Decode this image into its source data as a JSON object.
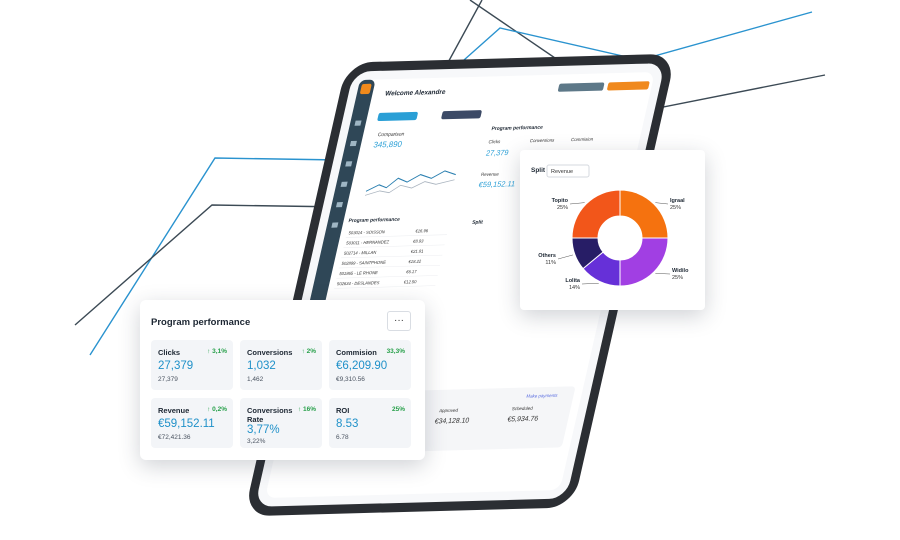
{
  "tablet": {
    "welcome": "Welcome Alexandre",
    "comparison": "Comparison",
    "comparison_value": "345,890",
    "program_performance": "Program performance",
    "clicks": "Clicks",
    "clicks_value": "27,379",
    "conversions": "Conversions",
    "commision": "Commision",
    "revenue": "Revenue",
    "revenue_value": "€59,152.11",
    "table_title": "Program performance",
    "table_rows": [
      [
        "503014 - SOISSON",
        "€16.96"
      ],
      [
        "503011 - HERNANDEZ",
        "€8.93"
      ],
      [
        "502714 - MILLAN",
        "€21.81"
      ],
      [
        "502899 - SAINTPHONE",
        "€18.22"
      ],
      [
        "501865 - LE RHONE",
        "€6.17"
      ],
      [
        "502634 - DESLANDES",
        "€12.50"
      ]
    ],
    "split": "Split",
    "make_payments": "Make payments",
    "approved": "Approved",
    "approved_value": "€34,128.10",
    "scheduled": "Scheduled",
    "scheduled_value": "€5,934.76"
  },
  "card": {
    "title": "Program performance",
    "more": "···",
    "metrics": [
      {
        "label": "Clicks",
        "change": "↑ 3,1%",
        "value": "27,379",
        "previous": "27,379"
      },
      {
        "label": "Conversions",
        "change": "↑ 2%",
        "value": "1,032",
        "previous": "1,462"
      },
      {
        "label": "Commision",
        "change": "33,3%",
        "value": "€6,209.90",
        "previous": "€9,310.56"
      },
      {
        "label": "Revenue",
        "change": "↑ 0,2%",
        "value": "€59,152.11",
        "previous": "€72,421.36"
      },
      {
        "label": "Conversions Rate",
        "change": "↑ 16%",
        "value": "3,77%",
        "previous": "3,22%"
      },
      {
        "label": "ROI",
        "change": "25%",
        "value": "8.53",
        "previous": "6.78"
      }
    ]
  },
  "chart_data": {
    "type": "pie",
    "title": "Split",
    "dropdown": "Revenue",
    "categories": [
      "Igraal",
      "Widilo",
      "Lolita",
      "Others",
      "Topito"
    ],
    "values": [
      25,
      25,
      14,
      11,
      25
    ],
    "value_labels": [
      "25%",
      "25%",
      "14%",
      "11%",
      "25%"
    ],
    "colors": [
      "#f5720f",
      "#a13fe3",
      "#6630d8",
      "#271d66",
      "#f2561a"
    ]
  }
}
